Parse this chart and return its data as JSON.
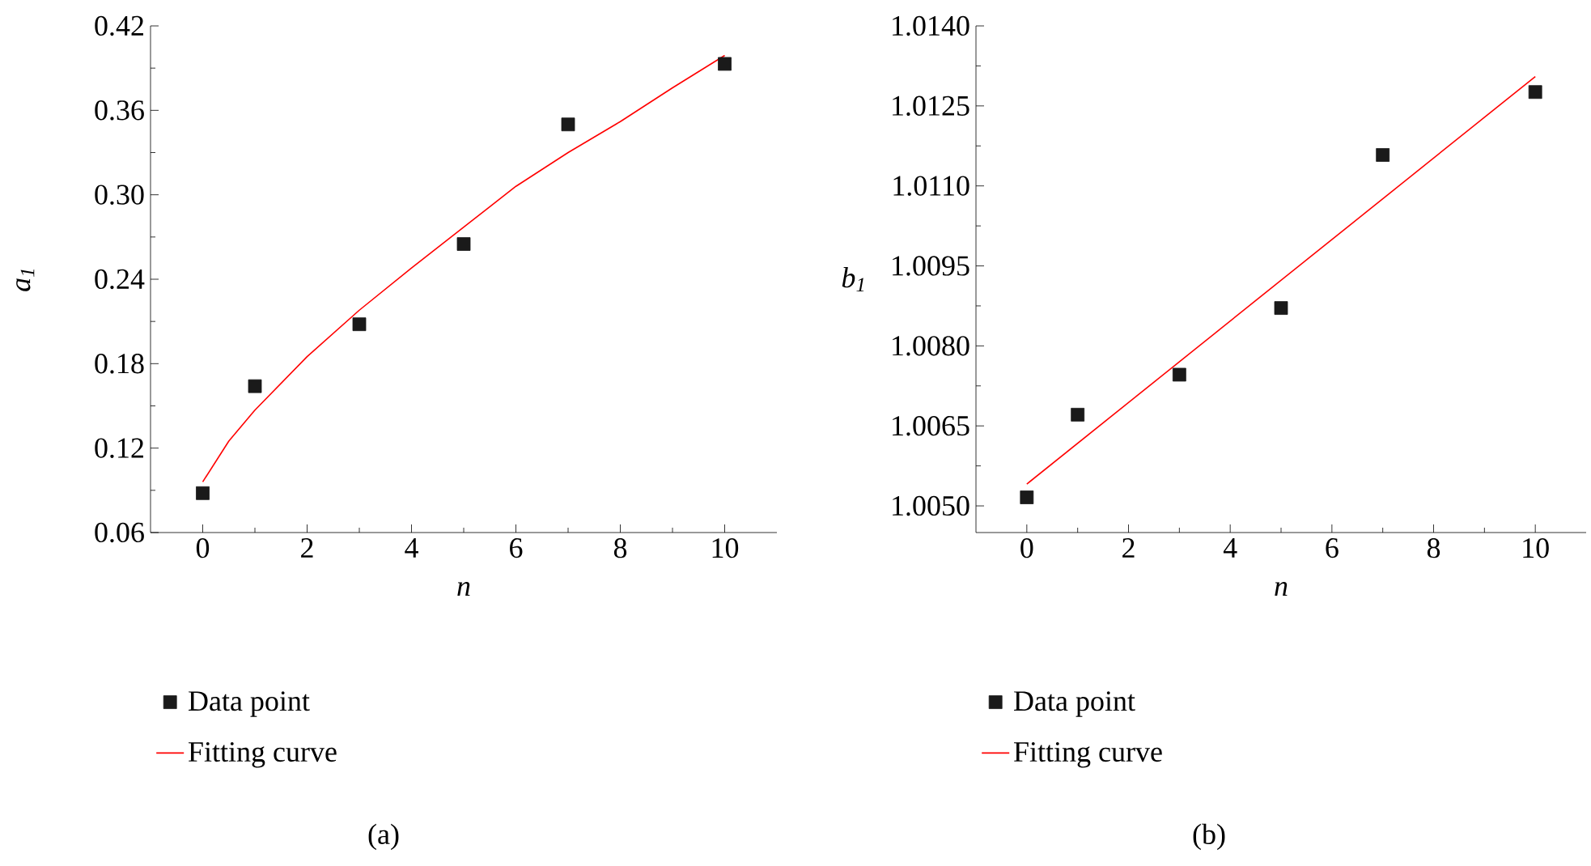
{
  "chart_data": [
    {
      "type": "scatter",
      "xlabel": "n",
      "ylabel": "a$_{1}$",
      "xlim": [
        -1,
        11
      ],
      "ylim": [
        0.06,
        0.42
      ],
      "xticks": [
        0,
        2,
        4,
        6,
        8,
        10
      ],
      "yticks": [
        0.06,
        0.12,
        0.18,
        0.24,
        {
          "value": 0.3,
          "label": "0.30"
        },
        0.36,
        0.42
      ],
      "legend": "bottom",
      "annotations": [
        "(a)"
      ],
      "series": [
        {
          "name": "Data point",
          "color": "#1a1a1a",
          "marker": "square",
          "x": [
            0,
            1,
            3,
            5,
            7,
            10
          ],
          "values": [
            0.088,
            0.164,
            0.208,
            0.265,
            0.35,
            0.393
          ]
        },
        {
          "name": "Fitting curve",
          "type": "line",
          "color": "#ff0000",
          "line_style": "solid",
          "x": [
            0,
            0.5,
            1,
            2,
            3,
            4,
            5,
            6,
            7,
            8,
            9,
            10
          ],
          "values": [
            0.096,
            0.125,
            0.147,
            0.185,
            0.218,
            0.248,
            0.277,
            0.306,
            0.33,
            0.352,
            0.376,
            0.399
          ]
        }
      ]
    },
    {
      "type": "scatter",
      "xlabel": "n",
      "ylabel": "b$_{1}$",
      "xlim": [
        -1,
        11
      ],
      "ylim": [
        1.0045,
        1.014
      ],
      "xticks": [
        0,
        2,
        4,
        6,
        8,
        10
      ],
      "yticks": [
        {
          "value": 1.005,
          "label": "1.0050"
        },
        1.0065,
        {
          "value": 1.008,
          "label": "1.0080"
        },
        1.0095,
        {
          "value": 1.011,
          "label": "1.0110"
        },
        1.0125,
        {
          "value": 1.014,
          "label": "1.0140"
        }
      ],
      "legend": "bottom",
      "annotations": [
        "(b)"
      ],
      "series": [
        {
          "name": "Data point",
          "color": "#1a1a1a",
          "marker": "square",
          "x": [
            0,
            1,
            3,
            5,
            7,
            10
          ],
          "values": [
            1.00516,
            1.00671,
            1.00746,
            1.00871,
            1.01158,
            1.01276
          ]
        },
        {
          "name": "Fitting curve",
          "type": "line",
          "color": "#ff0000",
          "line_style": "solid",
          "x": [
            0,
            10
          ],
          "values": [
            1.00541,
            1.01305
          ]
        }
      ]
    }
  ]
}
